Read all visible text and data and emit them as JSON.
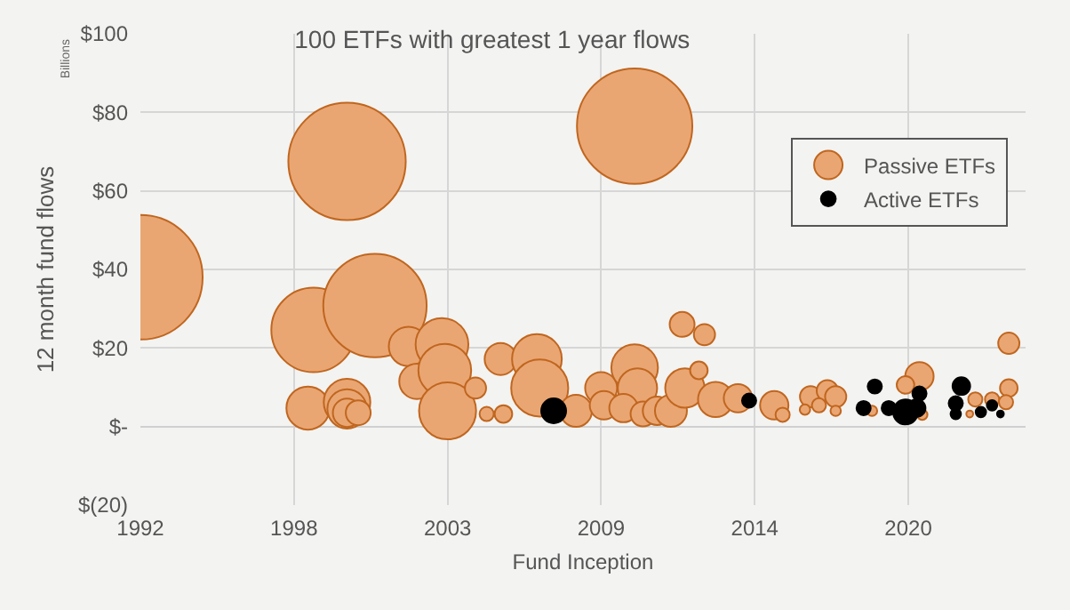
{
  "chart_data": {
    "type": "bubble",
    "title": "100 ETFs with greatest 1 year flows",
    "xlabel": "Fund Inception",
    "ylabel": "12 month fund flows",
    "annotations": [
      "Billions"
    ],
    "xlim": [
      1992.5,
      2024.2
    ],
    "xticks": [
      {
        "value": 1992.5,
        "label": "1992"
      },
      {
        "value": 1998,
        "label": "1998"
      },
      {
        "value": 2003.5,
        "label": "2003"
      },
      {
        "value": 2009,
        "label": "2009"
      },
      {
        "value": 2014.5,
        "label": "2014"
      },
      {
        "value": 2020,
        "label": "2020"
      }
    ],
    "ylim": [
      -20,
      100
    ],
    "yticks": [
      {
        "value": -20,
        "label": "$(20)"
      },
      {
        "value": 0,
        "label": "$-"
      },
      {
        "value": 20,
        "label": "$20"
      },
      {
        "value": 40,
        "label": "$40"
      },
      {
        "value": 60,
        "label": "$60"
      },
      {
        "value": 80,
        "label": "$80"
      },
      {
        "value": 100,
        "label": "$100"
      }
    ],
    "grid": true,
    "legend": "top right",
    "series": [
      {
        "name": "Passive ETFs",
        "color": "#eaa672",
        "x": [
          1992.5,
          1999.9,
          2010.2,
          1998.7,
          2000.9,
          1998.5,
          1999.9,
          1999.9,
          1999.9,
          2000.3,
          2002.1,
          2002.4,
          2003.3,
          2003.4,
          2003.5,
          2004.5,
          2004.9,
          2005.5,
          2005.4,
          2006.7,
          2006.8,
          2008.1,
          2009.0,
          2009.1,
          2010.2,
          2010.3,
          2009.8,
          2010.5,
          2011.0,
          2011.9,
          2012.7,
          2011.5,
          2012.0,
          2012.5,
          2013.1,
          2013.9,
          2015.2,
          2015.5,
          2016.5,
          2017.1,
          2016.8,
          2017.4,
          2017.4,
          2016.3,
          2018.7,
          2020.4,
          2019.9,
          2020.5,
          2022.4,
          2022.2,
          2023.0,
          2023.6,
          2023.5,
          2023.6
        ],
        "values": [
          38,
          67.5,
          76.5,
          24.6,
          30.8,
          4.7,
          6.2,
          4.5,
          3.5,
          3.5,
          20.4,
          11.5,
          20.9,
          14.3,
          4.0,
          9.8,
          3.2,
          3.2,
          17.2,
          17.2,
          9.8,
          4.0,
          9.8,
          5.4,
          15.0,
          9.8,
          4.7,
          3.2,
          4.0,
          26.0,
          23.4,
          4.0,
          9.8,
          14.3,
          6.9,
          7.2,
          5.4,
          3.0,
          7.6,
          9.1,
          5.4,
          7.6,
          4.0,
          4.3,
          4.0,
          12.8,
          10.6,
          3.0,
          6.9,
          3.2,
          6.9,
          9.8,
          6.2,
          21.2
        ],
        "sizes": [
          1,
          0.89,
          0.86,
          0.46,
          0.69,
          0.12,
          0.14,
          0.1,
          0.052,
          0.04,
          0.1,
          0.08,
          0.18,
          0.18,
          0.21,
          0.029,
          0.013,
          0.02,
          0.066,
          0.16,
          0.21,
          0.066,
          0.066,
          0.052,
          0.14,
          0.1,
          0.052,
          0.04,
          0.052,
          0.04,
          0.029,
          0.066,
          0.1,
          0.02,
          0.08,
          0.052,
          0.052,
          0.013,
          0.029,
          0.029,
          0.013,
          0.029,
          0.007,
          0.007,
          0.007,
          0.052,
          0.02,
          0.007,
          0.013,
          0.003,
          0.013,
          0.02,
          0.013,
          0.029
        ]
      },
      {
        "name": "Active ETFs",
        "color": "#000000",
        "x": [
          2007.3,
          2014.3,
          2018.8,
          2018.4,
          2019.3,
          2019.9,
          2020.4,
          2020.3,
          2021.9,
          2021.7,
          2021.7,
          2022.6,
          2023.0,
          2023.3
        ],
        "values": [
          4.0,
          6.6,
          10.2,
          4.7,
          4.7,
          3.7,
          8.4,
          4.7,
          10.3,
          5.9,
          3.2,
          3.7,
          5.4,
          3.2
        ],
        "sizes": [
          0.04,
          0.013,
          0.013,
          0.013,
          0.013,
          0.04,
          0.013,
          0.02,
          0.02,
          0.013,
          0.007,
          0.007,
          0.007,
          0.003
        ]
      }
    ]
  }
}
